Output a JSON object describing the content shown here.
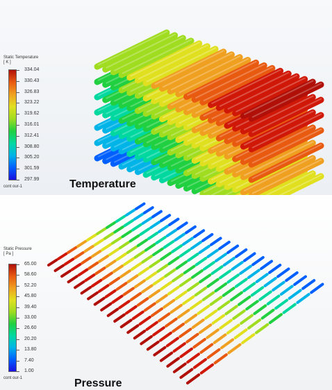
{
  "temperature_panel": {
    "caption": "Temperature",
    "legend": {
      "title_line1": "Static Temperature",
      "title_line2": "[ K ]",
      "ticks": [
        "334.04",
        "330.43",
        "326.83",
        "323.22",
        "319.62",
        "316.01",
        "312.41",
        "308.80",
        "305.20",
        "301.59",
        "297.99"
      ],
      "footer": "cont our-1"
    }
  },
  "pressure_panel": {
    "caption": "Pressure",
    "legend": {
      "title_line1": "Static Pressure",
      "title_line2": "[ Pa ]",
      "ticks": [
        "65.00",
        "58.60",
        "52.20",
        "45.80",
        "39.40",
        "33.00",
        "26.60",
        "20.20",
        "13.80",
        "7.40",
        "1.00"
      ],
      "footer": "cont our-1"
    }
  },
  "colormap": [
    "#1a10e0",
    "#0060ff",
    "#00b4e8",
    "#00d8a0",
    "#20d040",
    "#a0dc20",
    "#e0e020",
    "#f0a020",
    "#e85a10",
    "#d01808",
    "#b01008"
  ]
}
